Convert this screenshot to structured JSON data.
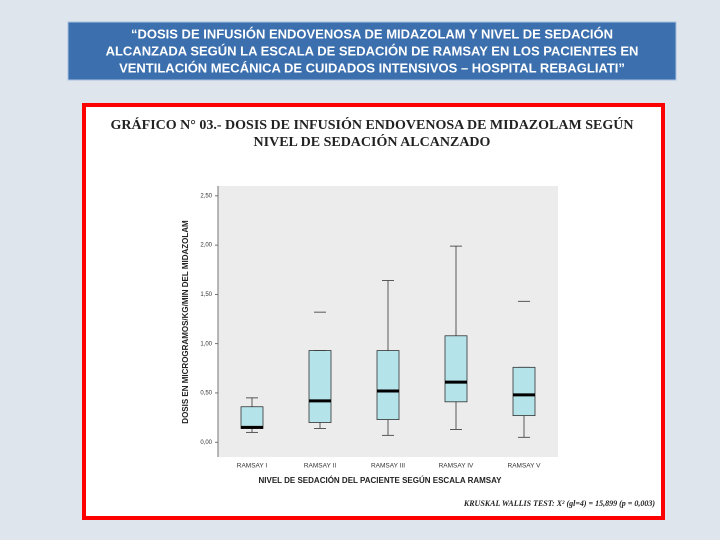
{
  "header": {
    "lines": [
      "“DOSIS DE INFUSIÓN ENDOVENOSA DE MIDAZOLAM Y NIVEL DE SEDACIÓN",
      "ALCANZADA SEGÚN LA ESCALA DE SEDACIÓN DE RAMSAY EN LOS PACIENTES EN",
      "VENTILACIÓN MECÁNICA DE CUIDADOS INTENSIVOS – HOSPITAL REBAGLIATI”"
    ]
  },
  "chart_data": {
    "type": "box",
    "title_lines": [
      "GRÁFICO N° 03.- DOSIS DE INFUSIÓN ENDOVENOSA DE MIDAZOLAM SEGÚN",
      "NIVEL DE SEDACIÓN ALCANZADO"
    ],
    "y_label": "DOSIS EN MICROGRAMOS/KG/MIN DEL MIDAZOLAM",
    "x_label": "NIVEL DE SEDACIÓN DEL PACIENTE SEGÚN ESCALA RAMSAY",
    "annotation": "KRUSKAL WALLIS TEST: X² (gl=4) = 15,899 (p = 0,003)",
    "categories": [
      "RAMSAY I",
      "RAMSAY II",
      "RAMSAY III",
      "RAMSAY IV",
      "RAMSAY V"
    ],
    "low": [
      0.1,
      0.14,
      0.07,
      0.13,
      0.05
    ],
    "q1": [
      0.14,
      0.2,
      0.23,
      0.41,
      0.27
    ],
    "median": [
      0.15,
      0.42,
      0.52,
      0.61,
      0.48
    ],
    "q3": [
      0.36,
      0.93,
      0.93,
      1.08,
      0.76
    ],
    "high": [
      0.45,
      0.93,
      1.64,
      1.99,
      0.76
    ],
    "outliers": [
      null,
      1.32,
      null,
      null,
      1.43
    ],
    "color": "#b5e3ea",
    "ylim": [
      -0.15,
      2.6
    ],
    "yticks": [
      {
        "value": 0,
        "label": "0,00"
      },
      {
        "value": 0.5,
        "label": "0,50"
      },
      {
        "value": 1,
        "label": "1,00"
      },
      {
        "value": 1.5,
        "label": "1,50"
      },
      {
        "value": 2,
        "label": "2,00"
      },
      {
        "value": 2.5,
        "label": "2,50"
      }
    ]
  }
}
